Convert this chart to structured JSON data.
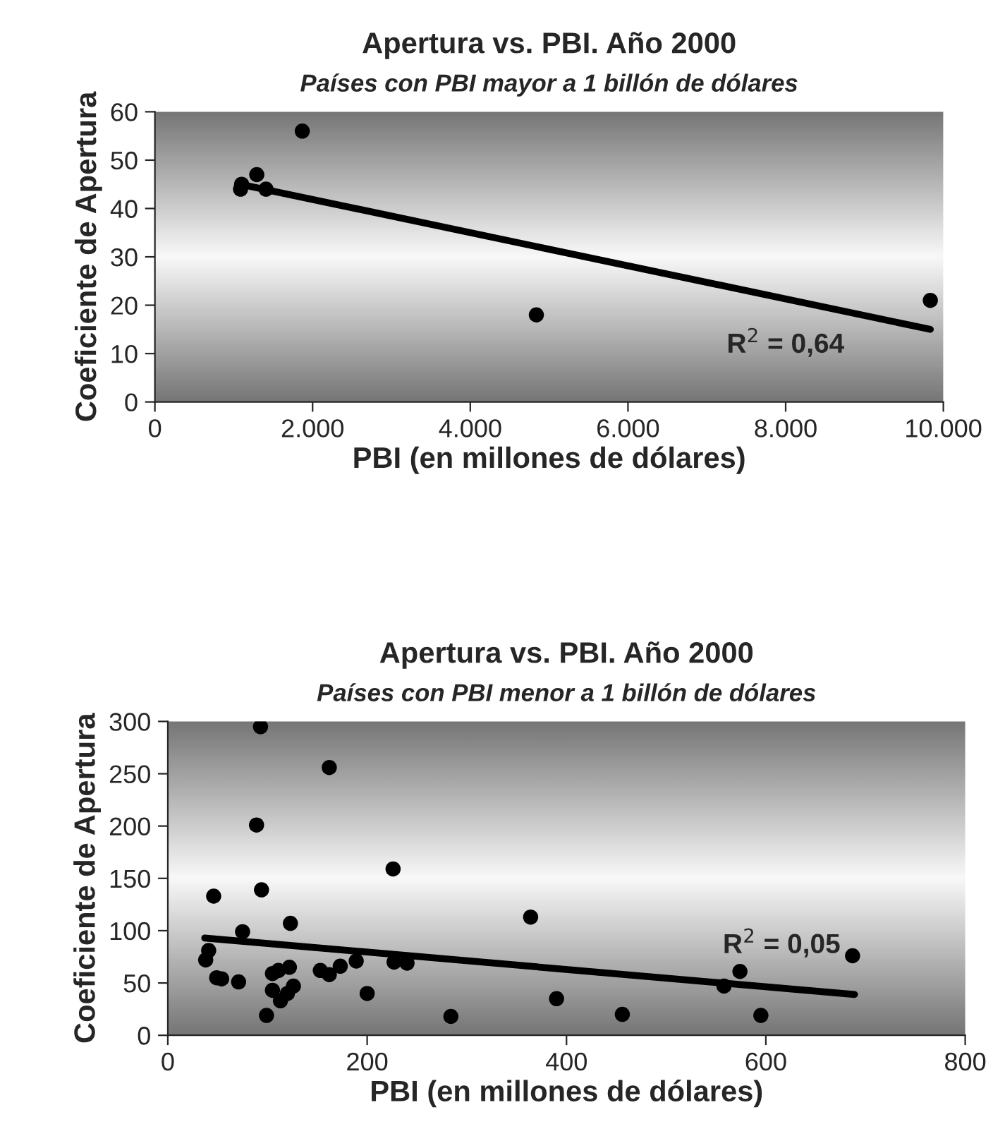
{
  "chart_data": [
    {
      "type": "scatter",
      "title": "Apertura vs. PBI. Año 2000",
      "subtitle": "Países con PBI mayor a 1 billón de dólares",
      "xlabel": "PBI (en millones de dólares)",
      "ylabel": "Coeficiente de Apertura",
      "grid": false,
      "legend": false,
      "xlim": [
        0,
        10000
      ],
      "xticks": [
        0,
        {
          "value": 2000,
          "label": "2.000"
        },
        {
          "value": 4000,
          "label": "4.000"
        },
        {
          "value": 6000,
          "label": "6.000"
        },
        {
          "value": 8000,
          "label": "8.000"
        },
        {
          "value": 10000,
          "label": "10.000"
        }
      ],
      "ylim": [
        0,
        60
      ],
      "yticks": [
        0,
        10,
        20,
        30,
        40,
        50,
        60
      ],
      "series": [
        {
          "marker": "circle",
          "color": "#000000",
          "x": [
            1086,
            1100,
            1292,
            1409,
            1869,
            4838,
            9835
          ],
          "values": [
            44,
            45,
            47,
            44,
            56,
            18,
            21
          ]
        },
        {
          "type": "line",
          "marker": "none",
          "color": "#000000",
          "x": [
            1086,
            9835
          ],
          "values": [
            45,
            15
          ]
        }
      ],
      "annotations": [
        "R$^{2}$ = 0,64"
      ]
    },
    {
      "type": "scatter",
      "title": "Apertura vs. PBI. Año 2000",
      "subtitle": "Países con PBI menor a 1 billón de dólares",
      "xlabel": "PBI (en millones de dólares)",
      "ylabel": "Coeficiente de Apertura",
      "grid": false,
      "legend": false,
      "xlim": [
        0,
        800
      ],
      "xticks": [
        0,
        200,
        400,
        600,
        800
      ],
      "ylim": [
        0,
        300
      ],
      "yticks": [
        0,
        50,
        100,
        150,
        200,
        250,
        300
      ],
      "series": [
        {
          "marker": "circle",
          "color": "#000000",
          "x": [
            38,
            41,
            46,
            49,
            54,
            71,
            75,
            89,
            93,
            94,
            99,
            105,
            105,
            111,
            113,
            120,
            122,
            123,
            126,
            153,
            162,
            162,
            173,
            189,
            200,
            226,
            227,
            240,
            284,
            364,
            390,
            456,
            558,
            574,
            595,
            687
          ],
          "values": [
            72,
            81,
            133,
            55,
            54,
            51,
            99,
            201,
            295,
            139,
            19,
            43,
            59,
            62,
            33,
            40,
            65,
            107,
            47,
            62,
            58,
            256,
            66,
            71,
            40,
            159,
            70,
            69,
            18,
            113,
            35,
            20,
            47,
            61,
            19,
            76
          ]
        },
        {
          "type": "line",
          "marker": "none",
          "color": "#000000",
          "x": [
            37,
            689
          ],
          "values": [
            93,
            39
          ]
        }
      ],
      "annotations": [
        "R$^{2}$ = 0,05"
      ]
    }
  ]
}
